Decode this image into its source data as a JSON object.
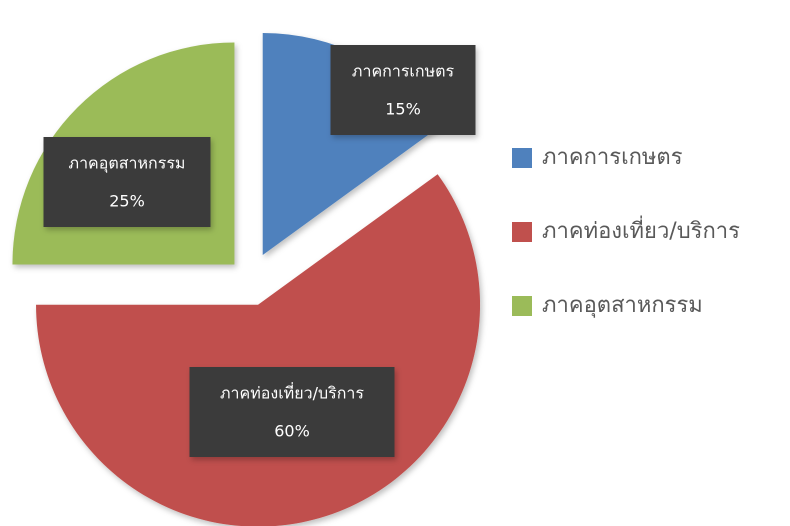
{
  "chart_data": {
    "type": "pie",
    "categories": [
      "ภาคการเกษตร",
      "ภาคท่องเที่ยว/บริการ",
      "ภาคอุตสาหกรรม"
    ],
    "values": [
      15,
      60,
      25
    ],
    "value_labels": [
      "15%",
      "60%",
      "25%"
    ],
    "colors": [
      "#4f81bd",
      "#c0504d",
      "#9bbb59"
    ],
    "legend": "right"
  }
}
